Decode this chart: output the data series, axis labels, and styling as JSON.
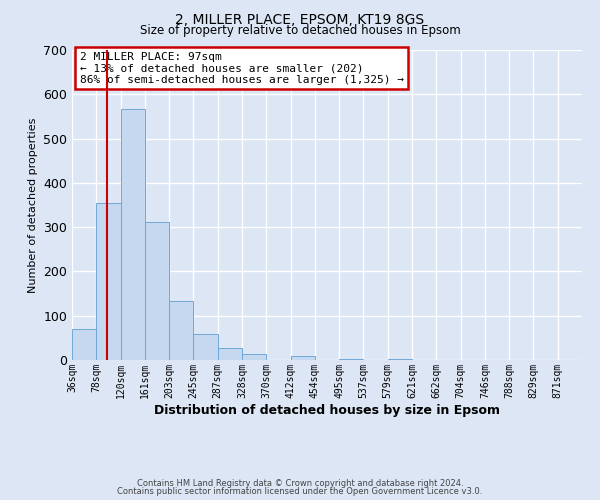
{
  "title1": "2, MILLER PLACE, EPSOM, KT19 8GS",
  "title2": "Size of property relative to detached houses in Epsom",
  "xlabel": "Distribution of detached houses by size in Epsom",
  "ylabel": "Number of detached properties",
  "bin_labels": [
    "36sqm",
    "78sqm",
    "120sqm",
    "161sqm",
    "203sqm",
    "245sqm",
    "287sqm",
    "328sqm",
    "370sqm",
    "412sqm",
    "454sqm",
    "495sqm",
    "537sqm",
    "579sqm",
    "621sqm",
    "662sqm",
    "704sqm",
    "746sqm",
    "788sqm",
    "829sqm",
    "871sqm"
  ],
  "bar_heights": [
    70,
    355,
    567,
    312,
    133,
    58,
    27,
    13,
    0,
    10,
    0,
    3,
    0,
    3,
    0,
    0,
    0,
    0,
    0,
    0,
    0
  ],
  "bar_color": "#c5d8f0",
  "bar_edgecolor": "#6ea8d8",
  "vline_color": "#cc0000",
  "bin_edges_values": [
    36,
    78,
    120,
    161,
    203,
    245,
    287,
    328,
    370,
    412,
    454,
    495,
    537,
    579,
    621,
    662,
    704,
    746,
    788,
    829,
    871
  ],
  "property_sqm": 97,
  "ylim": [
    0,
    700
  ],
  "yticks": [
    0,
    100,
    200,
    300,
    400,
    500,
    600,
    700
  ],
  "annotation_title": "2 MILLER PLACE: 97sqm",
  "annotation_line1": "← 13% of detached houses are smaller (202)",
  "annotation_line2": "86% of semi-detached houses are larger (1,325) →",
  "annotation_box_facecolor": "#ffffff",
  "annotation_box_edgecolor": "#cc0000",
  "background_color": "#dce6f5",
  "grid_color": "#ffffff",
  "footer1": "Contains HM Land Registry data © Crown copyright and database right 2024.",
  "footer2": "Contains public sector information licensed under the Open Government Licence v3.0."
}
